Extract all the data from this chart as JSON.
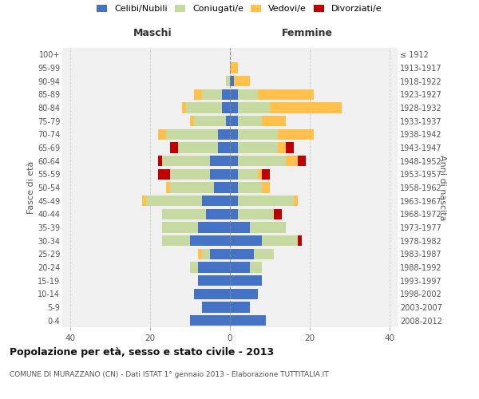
{
  "age_groups": [
    "0-4",
    "5-9",
    "10-14",
    "15-19",
    "20-24",
    "25-29",
    "30-34",
    "35-39",
    "40-44",
    "45-49",
    "50-54",
    "55-59",
    "60-64",
    "65-69",
    "70-74",
    "75-79",
    "80-84",
    "85-89",
    "90-94",
    "95-99",
    "100+"
  ],
  "birth_years": [
    "2008-2012",
    "2003-2007",
    "1998-2002",
    "1993-1997",
    "1988-1992",
    "1983-1987",
    "1978-1982",
    "1973-1977",
    "1968-1972",
    "1963-1967",
    "1958-1962",
    "1953-1957",
    "1948-1952",
    "1943-1947",
    "1938-1942",
    "1933-1937",
    "1928-1932",
    "1923-1927",
    "1918-1922",
    "1913-1917",
    "≤ 1912"
  ],
  "maschi_celibi": [
    10,
    7,
    9,
    8,
    8,
    5,
    10,
    8,
    6,
    7,
    4,
    5,
    5,
    3,
    3,
    1,
    2,
    2,
    0,
    0,
    0
  ],
  "maschi_coniugati": [
    0,
    0,
    0,
    0,
    2,
    2,
    7,
    9,
    11,
    14,
    11,
    10,
    12,
    10,
    13,
    8,
    9,
    5,
    1,
    0,
    0
  ],
  "maschi_vedovi": [
    0,
    0,
    0,
    0,
    0,
    1,
    0,
    0,
    0,
    1,
    1,
    0,
    0,
    0,
    2,
    1,
    1,
    2,
    0,
    0,
    0
  ],
  "maschi_divorziati": [
    0,
    0,
    0,
    0,
    0,
    0,
    0,
    0,
    0,
    0,
    0,
    3,
    1,
    2,
    0,
    0,
    0,
    0,
    0,
    0,
    0
  ],
  "femmine_nubili": [
    9,
    5,
    7,
    8,
    5,
    6,
    8,
    5,
    2,
    2,
    2,
    2,
    2,
    2,
    2,
    2,
    2,
    2,
    1,
    0,
    0
  ],
  "femmine_coniugate": [
    0,
    0,
    0,
    0,
    3,
    5,
    9,
    9,
    9,
    14,
    6,
    5,
    12,
    10,
    10,
    6,
    8,
    5,
    0,
    0,
    0
  ],
  "femmine_vedove": [
    0,
    0,
    0,
    0,
    0,
    0,
    0,
    0,
    0,
    1,
    2,
    1,
    3,
    2,
    9,
    6,
    18,
    14,
    4,
    2,
    0
  ],
  "femmine_divorziate": [
    0,
    0,
    0,
    0,
    0,
    0,
    1,
    0,
    2,
    0,
    0,
    2,
    2,
    2,
    0,
    0,
    0,
    0,
    0,
    0,
    0
  ],
  "color_celibi": "#4472c4",
  "color_coniugati": "#c5d9a0",
  "color_vedovi": "#ffc04c",
  "color_divorziati": "#c00000",
  "xlim": 42,
  "xticks": [
    -40,
    -20,
    0,
    20,
    40
  ],
  "title": "Popolazione per età, sesso e stato civile - 2013",
  "subtitle": "COMUNE DI MURAZZANO (CN) - Dati ISTAT 1° gennaio 2013 - Elaborazione TUTTITALIA.IT",
  "legend_labels": [
    "Celibi/Nubili",
    "Coniugati/e",
    "Vedovi/e",
    "Divorziati/e"
  ],
  "label_maschi": "Maschi",
  "label_femmine": "Femmine",
  "ylabel_left": "Fasce di età",
  "ylabel_right": "Anni di nascita",
  "bg_color": "#ffffff",
  "plot_bg": "#f0f0f0",
  "grid_color": "#cccccc"
}
